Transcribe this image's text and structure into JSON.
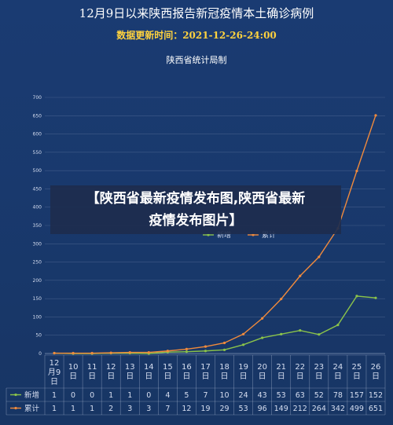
{
  "header": {
    "title": "12月9日以来陕西报告新冠疫情本土确诊病例",
    "subtitle": "数据更新时间：2021-12-26-24:00",
    "source": "陕西省统计局制"
  },
  "overlay": {
    "line1": "【陕西省最新疫情发布图,陕西省最新",
    "line2": "疫情发布图片】"
  },
  "colors": {
    "new_cases": "#8bc34a",
    "cumulative": "#f08a3c",
    "background": "#1a3b72"
  },
  "chart_data": {
    "type": "line",
    "title": "12月9日以来陕西报告新冠疫情本土确诊病例",
    "subtitle": "数据更新时间：2021-12-26-24:00",
    "categories": [
      "12月9日",
      "10日",
      "11日",
      "12日",
      "13日",
      "14日",
      "15日",
      "16日",
      "17日",
      "18日",
      "19日",
      "20日",
      "21日",
      "22日",
      "23日",
      "24日",
      "25日",
      "26日"
    ],
    "series": [
      {
        "name": "新增",
        "values": [
          1,
          0,
          0,
          1,
          1,
          0,
          4,
          5,
          7,
          10,
          24,
          43,
          53,
          63,
          52,
          78,
          157,
          152
        ]
      },
      {
        "name": "累计",
        "values": [
          1,
          1,
          1,
          2,
          3,
          3,
          7,
          12,
          19,
          29,
          53,
          96,
          149,
          212,
          264,
          342,
          499,
          651
        ]
      }
    ],
    "ylim": [
      0,
      700
    ],
    "yticks": [
      0,
      50,
      100,
      150,
      200,
      250,
      300,
      350,
      400,
      450,
      500,
      550,
      600,
      650,
      700
    ],
    "grid": true,
    "legend": "top-center"
  }
}
